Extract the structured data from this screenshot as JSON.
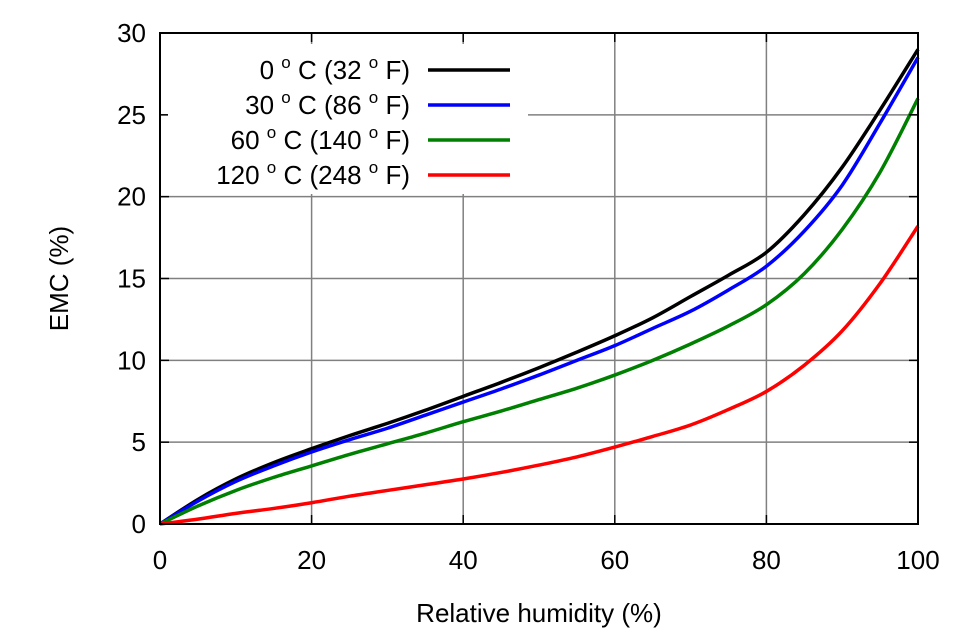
{
  "chart_data": {
    "type": "line",
    "xlabel": "Relative humidity (%)",
    "ylabel": "EMC (%)",
    "xlim": [
      0,
      100
    ],
    "ylim": [
      0,
      30
    ],
    "x_ticks": [
      0,
      20,
      40,
      60,
      80,
      100
    ],
    "y_ticks": [
      0,
      5,
      10,
      15,
      20,
      25,
      30
    ],
    "grid": true,
    "legend_position": "top-left",
    "x": [
      0,
      5,
      10,
      15,
      20,
      25,
      30,
      35,
      40,
      45,
      50,
      55,
      60,
      65,
      70,
      75,
      80,
      85,
      90,
      95,
      100
    ],
    "series": [
      {
        "name": "0 o C (32 o F)",
        "label_parts": [
          "0 ",
          "o",
          " C (32 ",
          "o",
          " F)"
        ],
        "color": "#000000",
        "values": [
          0,
          1.5,
          2.75,
          3.75,
          4.6,
          5.4,
          6.15,
          6.95,
          7.8,
          8.65,
          9.55,
          10.5,
          11.5,
          12.6,
          13.9,
          15.2,
          16.6,
          18.9,
          21.8,
          25.3,
          29.0
        ]
      },
      {
        "name": "30 o C (86 o F)",
        "label_parts": [
          "30 ",
          "o",
          " C (86 ",
          "o",
          " F)"
        ],
        "color": "#0000ff",
        "values": [
          0,
          1.4,
          2.6,
          3.55,
          4.4,
          5.15,
          5.85,
          6.65,
          7.45,
          8.25,
          9.1,
          10.0,
          10.9,
          11.95,
          13.0,
          14.3,
          15.75,
          17.9,
          20.7,
          24.5,
          28.5
        ]
      },
      {
        "name": "60 o C (140 o F)",
        "label_parts": [
          "60 ",
          "o",
          " C (140 ",
          "o",
          " F)"
        ],
        "color": "#008000",
        "values": [
          0,
          1.1,
          2.05,
          2.85,
          3.55,
          4.25,
          4.9,
          5.55,
          6.25,
          6.9,
          7.6,
          8.3,
          9.1,
          10.0,
          11.0,
          12.1,
          13.4,
          15.3,
          18.0,
          21.5,
          26.0
        ]
      },
      {
        "name": "120 o C (248 o F)",
        "label_parts": [
          "120 ",
          "o",
          " C (248 ",
          "o",
          " F)"
        ],
        "color": "#ff0000",
        "values": [
          0,
          0.3,
          0.65,
          0.95,
          1.3,
          1.7,
          2.05,
          2.4,
          2.75,
          3.15,
          3.6,
          4.1,
          4.7,
          5.35,
          6.05,
          7.0,
          8.1,
          9.7,
          11.8,
          14.7,
          18.2
        ]
      }
    ]
  }
}
